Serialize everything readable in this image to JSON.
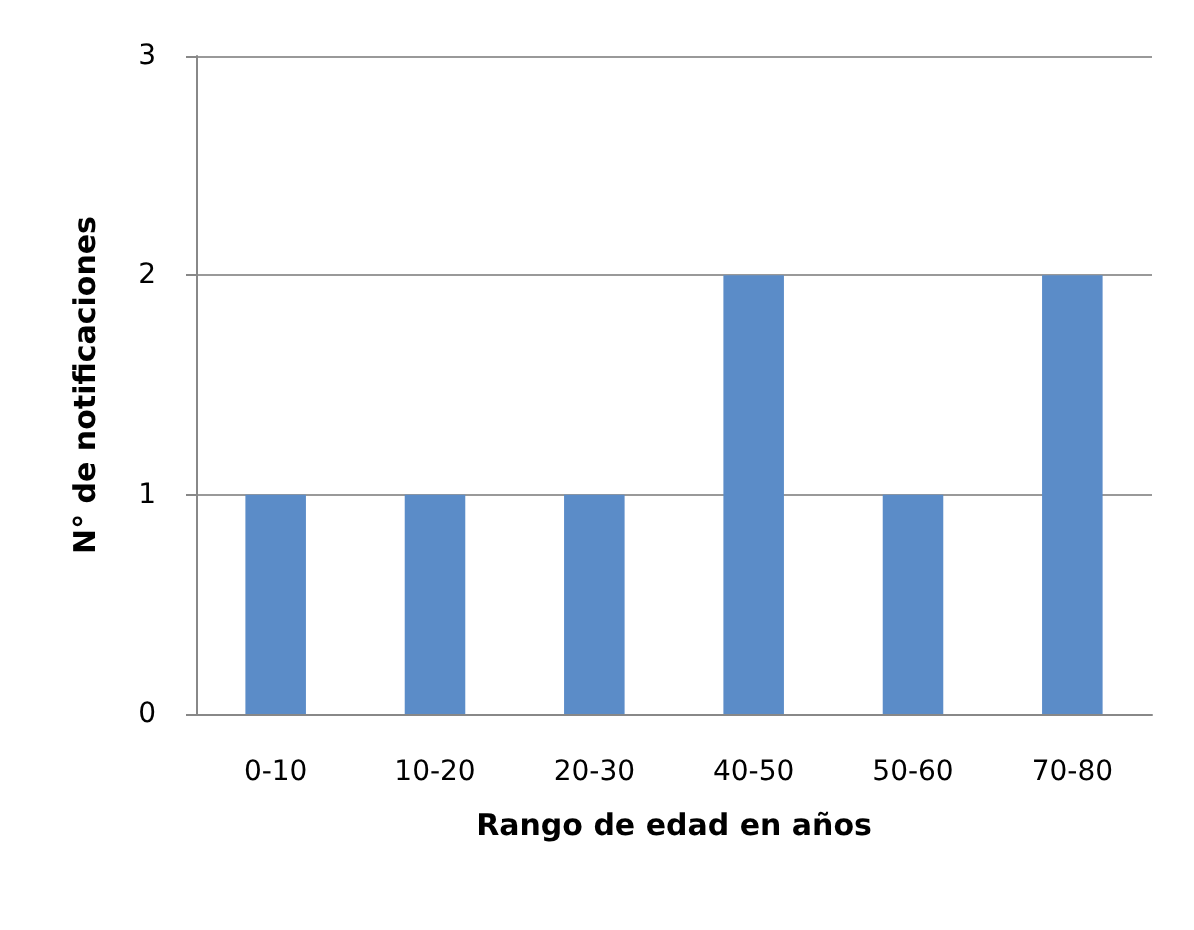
{
  "chart_data": {
    "type": "bar",
    "xlabel": "Rango de edad en años",
    "ylabel": "N° de notificaciones",
    "categories": [
      "0-10",
      "10-20",
      "20-30",
      "40-50",
      "50-60",
      "70-80"
    ],
    "values": [
      1,
      1,
      1,
      2,
      1,
      2
    ],
    "color": "#5b8cc8",
    "ylim": [
      0,
      3
    ],
    "yticks": [
      0,
      1,
      2,
      3
    ],
    "grid": "y"
  }
}
